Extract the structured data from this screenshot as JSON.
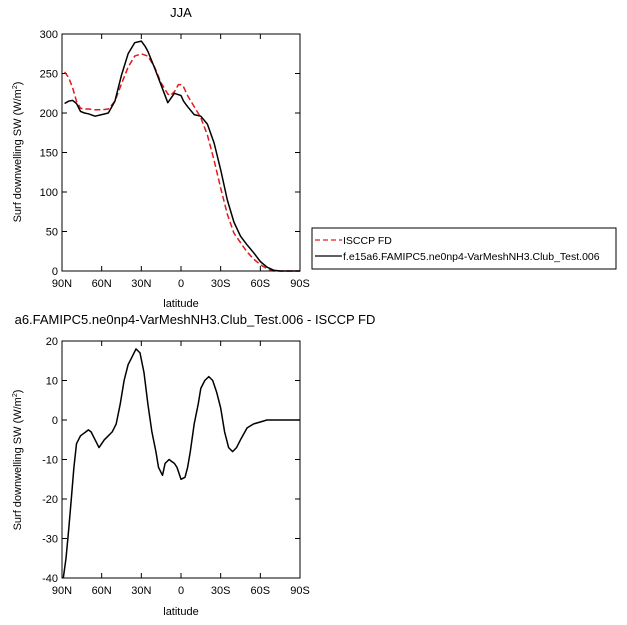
{
  "chart_data": [
    {
      "type": "line",
      "title": "JJA",
      "xlabel": "latitude",
      "ylabel": "Surf downwelling SW (W/m²)",
      "ylabel_main": "Surf downwelling SW (W/m",
      "ylabel_sup": "2",
      "ylabel_close": ")",
      "xlim": [
        90,
        -90
      ],
      "ylim": [
        0,
        300
      ],
      "x_ticks": [
        90,
        60,
        30,
        0,
        -30,
        -60,
        -90
      ],
      "x_tick_labels": [
        "90N",
        "60N",
        "30N",
        "0",
        "30S",
        "60S",
        "90S"
      ],
      "y_ticks": [
        0,
        50,
        100,
        150,
        200,
        250,
        300
      ],
      "y_tick_labels": [
        "0",
        "50",
        "100",
        "150",
        "200",
        "250",
        "300"
      ],
      "legend": {
        "placement": "right",
        "entries": [
          "ISCCP FD",
          "f.e15a6.FAMIPC5.ne0np4-VarMeshNH3.Club_Test.006"
        ]
      },
      "series": [
        {
          "name": "ISCCP FD",
          "color": "#e31a1c",
          "dash": "dashed",
          "x": [
            88,
            85,
            82,
            79,
            76,
            73,
            70,
            65,
            60,
            55,
            50,
            45,
            40,
            35,
            30,
            25,
            20,
            15,
            10,
            8,
            5,
            2,
            0,
            -2,
            -5,
            -10,
            -15,
            -20,
            -25,
            -30,
            -35,
            -40,
            -45,
            -50,
            -55,
            -60,
            -65,
            -70,
            -75,
            -80,
            -85,
            -90
          ],
          "values": [
            252,
            245,
            232,
            215,
            206,
            205,
            205,
            204,
            204,
            205,
            215,
            237,
            258,
            272,
            275,
            272,
            258,
            238,
            224,
            222,
            227,
            236,
            236,
            233,
            222,
            208,
            194,
            172,
            140,
            105,
            72,
            48,
            36,
            24,
            15,
            8,
            3,
            0,
            0,
            0,
            0,
            0
          ]
        },
        {
          "name": "f.e15a6.FAMIPC5.ne0np4-VarMeshNH3.Club_Test.006",
          "color": "#000000",
          "dash": "solid",
          "x": [
            88,
            85,
            82,
            79,
            76,
            73,
            70,
            65,
            60,
            55,
            50,
            45,
            40,
            35,
            30,
            27,
            25,
            20,
            15,
            10,
            5,
            0,
            -2,
            -5,
            -10,
            -15,
            -20,
            -25,
            -30,
            -35,
            -40,
            -45,
            -50,
            -55,
            -60,
            -65,
            -70,
            -75,
            -80,
            -85,
            -90
          ],
          "values": [
            212,
            215,
            216,
            212,
            202,
            200,
            199,
            196,
            198,
            200,
            215,
            248,
            275,
            289,
            291,
            284,
            278,
            257,
            235,
            213,
            225,
            222,
            215,
            208,
            198,
            196,
            186,
            162,
            128,
            90,
            62,
            44,
            33,
            23,
            12,
            5,
            1,
            0,
            0,
            0,
            0
          ]
        }
      ]
    },
    {
      "type": "line",
      "title": "a6.FAMIPC5.ne0np4-VarMeshNH3.Club_Test.006 - ISCCP FD",
      "xlabel": "latitude",
      "ylabel": "Surf downwelling SW (W/m²)",
      "ylabel_main": "Surf downwelling SW (W/m",
      "ylabel_sup": "2",
      "ylabel_close": ")",
      "xlim": [
        90,
        -90
      ],
      "ylim": [
        -40,
        20
      ],
      "x_ticks": [
        90,
        60,
        30,
        0,
        -30,
        -60,
        -90
      ],
      "x_tick_labels": [
        "90N",
        "60N",
        "30N",
        "0",
        "30S",
        "60S",
        "90S"
      ],
      "y_ticks": [
        -40,
        -30,
        -20,
        -10,
        0,
        10,
        20
      ],
      "y_tick_labels": [
        "-40",
        "-30",
        "-20",
        "-10",
        "0",
        "10",
        "20"
      ],
      "series": [
        {
          "color": "#000000",
          "dash": "solid",
          "x": [
            89,
            87,
            85,
            83,
            81,
            79,
            76,
            74,
            72,
            70,
            68,
            65,
            62,
            58,
            55,
            52,
            49,
            46,
            43,
            40,
            37,
            34,
            31,
            28,
            25,
            22,
            19,
            17,
            14,
            12,
            9,
            7,
            5,
            3,
            0,
            -3,
            -5,
            -7,
            -10,
            -13,
            -15,
            -18,
            -21,
            -24,
            -27,
            -30,
            -33,
            -36,
            -39,
            -42,
            -45,
            -50,
            -55,
            -60,
            -65,
            -70,
            -75,
            -80,
            -85,
            -90
          ],
          "values": [
            -40,
            -35,
            -28,
            -20,
            -12,
            -6,
            -4,
            -3.5,
            -3,
            -2.5,
            -3,
            -5,
            -7,
            -5,
            -4,
            -3,
            -1,
            4,
            10,
            14,
            16,
            18,
            17,
            12,
            4,
            -3,
            -8,
            -12,
            -14,
            -11,
            -10,
            -10.5,
            -11,
            -12,
            -15,
            -14.5,
            -12,
            -8,
            -1,
            4,
            8,
            10,
            11,
            10,
            7,
            3,
            -3,
            -7,
            -8,
            -7,
            -5,
            -2,
            -1,
            -0.5,
            0,
            0,
            0,
            0,
            0,
            0
          ]
        }
      ]
    }
  ]
}
